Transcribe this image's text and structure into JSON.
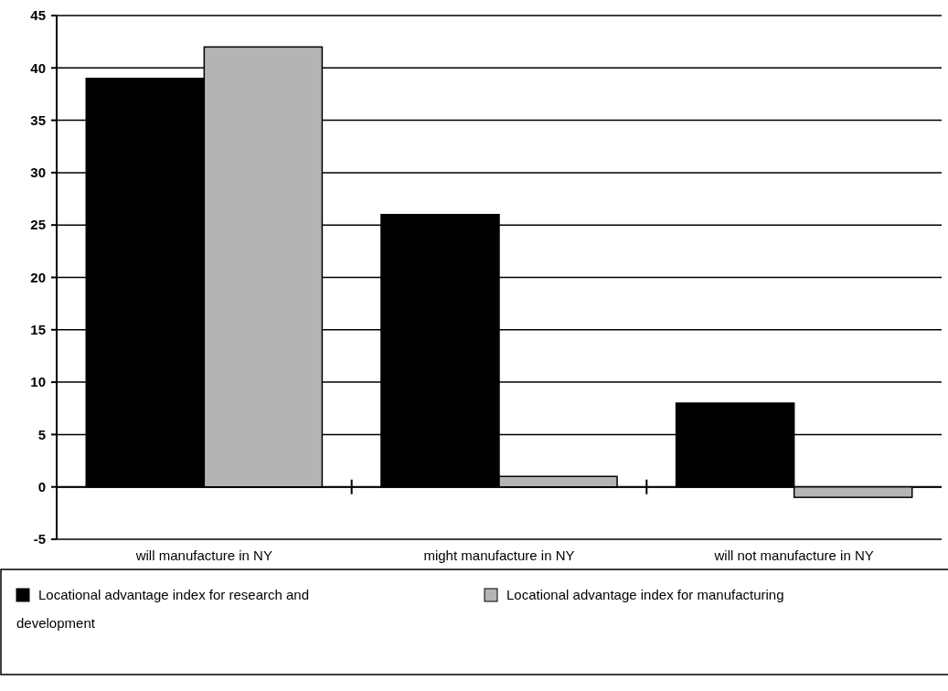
{
  "chart_data": {
    "type": "bar",
    "categories": [
      "will manufacture in NY",
      "might manufacture in NY",
      "will not manufacture in NY"
    ],
    "series": [
      {
        "name": "Locational advantage index for research and development",
        "color": "#000000",
        "values": [
          39,
          26,
          8
        ]
      },
      {
        "name": "Locational advantage index for manufacturing",
        "color": "#b4b4b4",
        "values": [
          42,
          1,
          -1
        ]
      }
    ],
    "ylim": [
      -5,
      45
    ],
    "yticks": [
      -5,
      0,
      5,
      10,
      15,
      20,
      25,
      30,
      35,
      40,
      45
    ],
    "grid": "y",
    "legend": "bottom"
  }
}
